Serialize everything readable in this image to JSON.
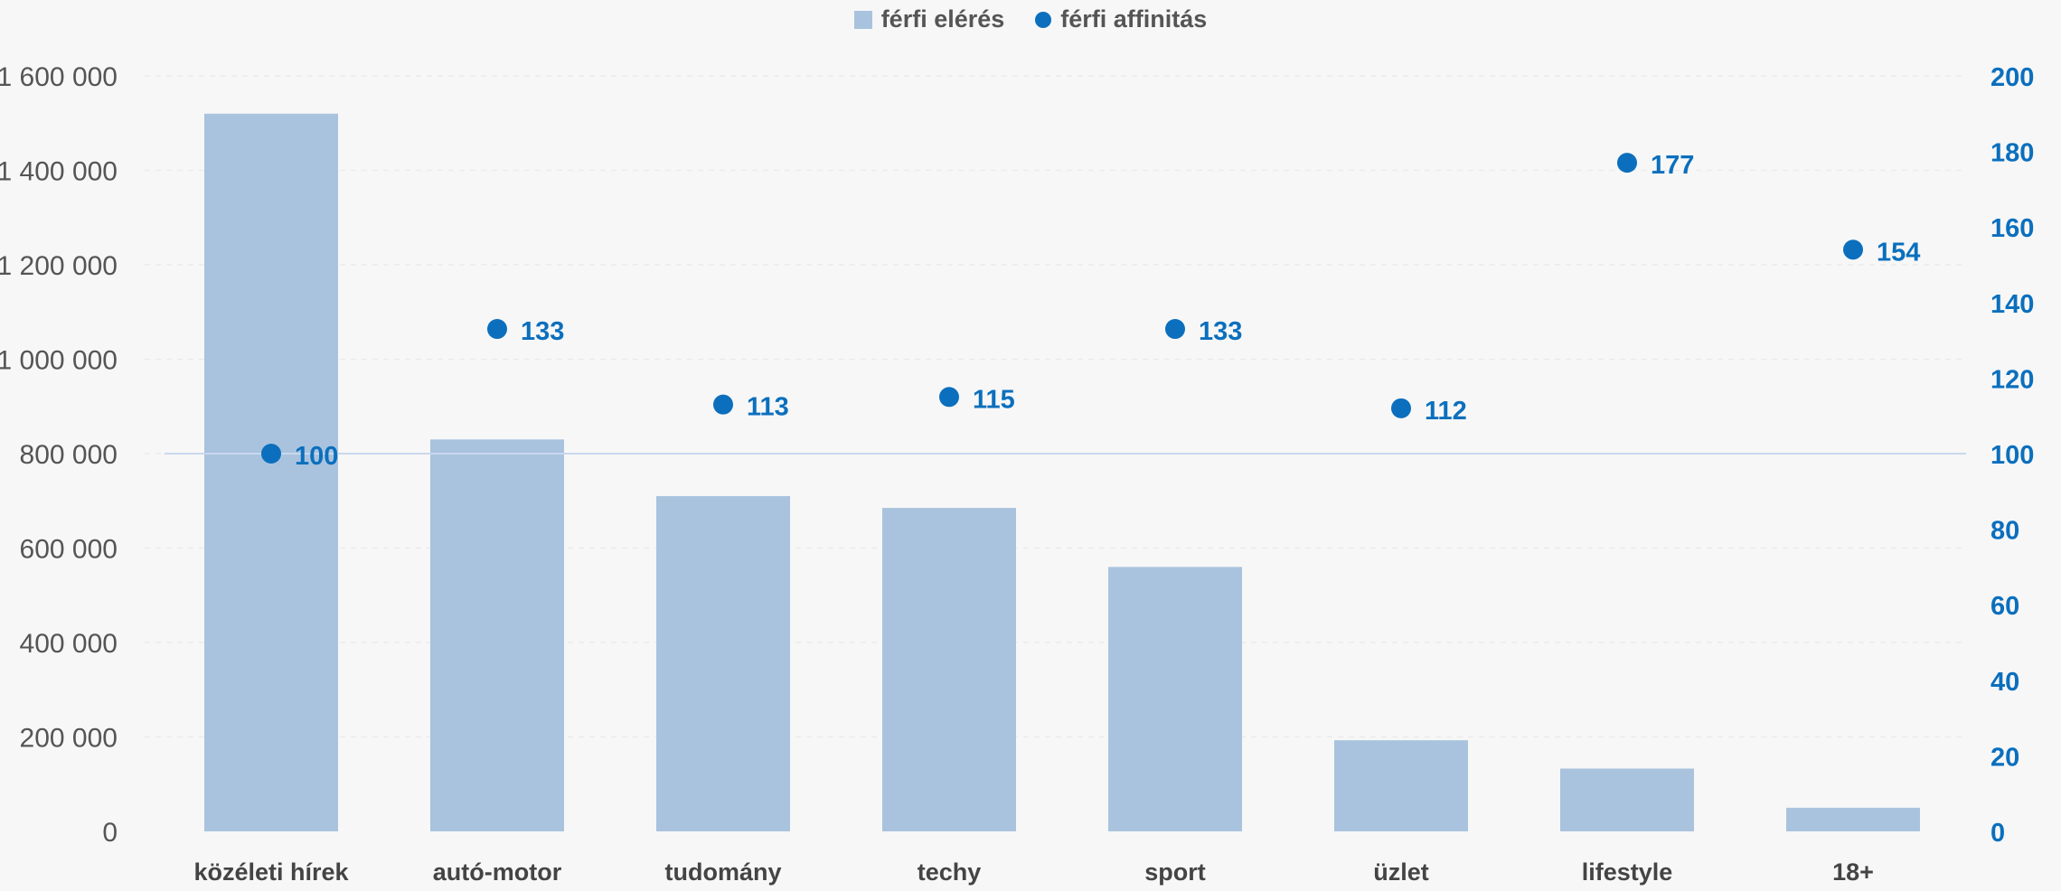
{
  "legend": {
    "bar_label": "férfi elérés",
    "dot_label": "férfi affinitás"
  },
  "colors": {
    "bar": "#a9c3de",
    "dot": "#0b6fbd",
    "reference_line": "#c9d8ee",
    "grid": "#e9e9e9"
  },
  "chart_data": {
    "type": "bar",
    "categories": [
      "közéleti hírek",
      "autó-motor",
      "tudomány",
      "techy",
      "sport",
      "üzlet",
      "lifestyle",
      "18+"
    ],
    "series": [
      {
        "name": "férfi elérés",
        "type": "bar",
        "axis": "left",
        "values": [
          1520000,
          830000,
          710000,
          685000,
          560000,
          193000,
          133000,
          50000
        ]
      },
      {
        "name": "férfi affinitás",
        "type": "scatter",
        "axis": "right",
        "values": [
          100,
          133,
          113,
          115,
          133,
          112,
          177,
          154
        ]
      }
    ],
    "y_left": {
      "min": 0,
      "max": 1600000,
      "ticks": [
        0,
        200000,
        400000,
        600000,
        800000,
        1000000,
        1200000,
        1400000,
        1600000
      ],
      "tick_labels": [
        "0",
        "200 000",
        "400 000",
        "600 000",
        "800 000",
        "1 000 000",
        "1 200 000",
        "1 400 000",
        "1 600 000"
      ]
    },
    "y_right": {
      "min": 0,
      "max": 200,
      "ticks": [
        0,
        20,
        40,
        60,
        80,
        100,
        120,
        140,
        160,
        180,
        200
      ],
      "tick_labels": [
        "0",
        "20",
        "40",
        "60",
        "80",
        "100",
        "120",
        "140",
        "160",
        "180",
        "200"
      ]
    },
    "reference_line": {
      "axis": "right",
      "value": 100
    },
    "point_labels": [
      "100",
      "133",
      "113",
      "115",
      "133",
      "112",
      "177",
      "154"
    ],
    "grid": true,
    "legend_position": "top-center"
  }
}
